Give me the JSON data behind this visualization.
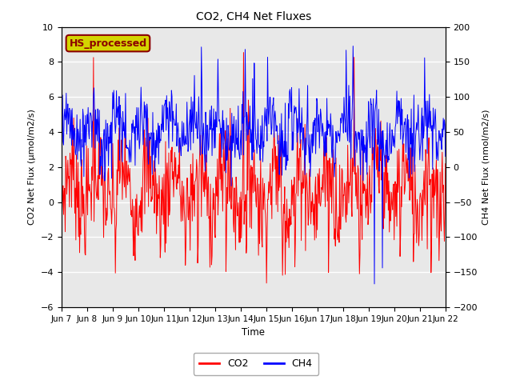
{
  "title": "CO2, CH4 Net Fluxes",
  "xlabel": "Time",
  "ylabel_left": "CO2 Net Flux (μmol/m2/s)",
  "ylabel_right": "CH4 Net Flux (nmol/m2/s)",
  "ylim_left": [
    -6,
    10
  ],
  "ylim_right": [
    -200,
    200
  ],
  "annotation_text": "HS_processed",
  "annotation_color": "#8B0000",
  "annotation_bg": "#d4d400",
  "x_tick_labels": [
    "Jun 7",
    "Jun 8",
    "Jun 9",
    "Jun 10",
    "Jun 11",
    "Jun 12",
    "Jun 13",
    "Jun 14",
    "Jun 15",
    "Jun 16",
    "Jun 17",
    "Jun 18",
    "Jun 19",
    "Jun 20",
    "Jun 21",
    "Jun 22"
  ],
  "co2_color": "red",
  "ch4_color": "blue",
  "legend_labels": [
    "CO2",
    "CH4"
  ],
  "background_color": "#e8e8e8",
  "grid_color": "white",
  "figsize": [
    6.4,
    4.8
  ],
  "dpi": 100
}
